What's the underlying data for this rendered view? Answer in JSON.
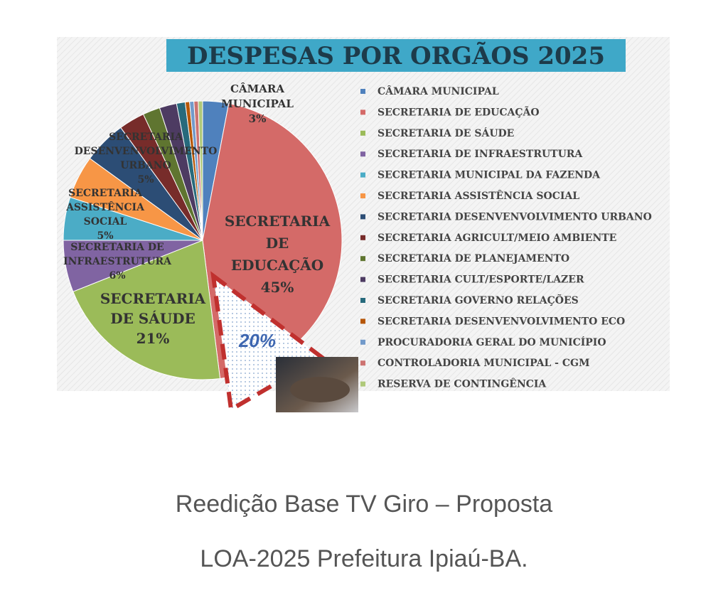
{
  "chart_data": {
    "type": "pie",
    "title": "DESPESAS POR ORGÃOS 2025",
    "categories": [
      "CÂMARA MUNICIPAL",
      "SECRETARIA DE EDUCAÇÃO",
      "SECRETARIA DE SÁUDE",
      "SECRETARIA DE INFRAESTRUTURA",
      "SECRETARIA MUNICIPAL DA FAZENDA",
      "SECRETARIA ASSISTÊNCIA SOCIAL",
      "SECRETARIA DESENVENVOLVIMENTO URBANO",
      "SECRETARIA AGRICULT/MEIO AMBIENTE",
      "SECRETARIA DE PLANEJAMENTO",
      "SECRETARIA CULT/ESPORTE/LAZER",
      "SECRETARIA GOVERNO RELAÇÕES",
      "SECRETARIA DESENVENVOLVIMENTO ECO",
      "PROCURADORIA GERAL DO MUNICÍPIO",
      "CONTROLADORIA MUNICIPAL - CGM",
      "RESERVA DE CONTINGÊNCIA"
    ],
    "values": [
      3,
      45,
      21,
      6,
      5,
      5,
      5,
      3,
      2,
      2,
      1,
      0.5,
      0.5,
      0.5,
      0.5
    ],
    "value_labels": [
      "3%",
      "45%",
      "21%",
      "6%",
      null,
      "5%",
      "5%",
      null,
      null,
      null,
      null,
      null,
      null,
      null,
      null
    ],
    "slice_labels": [
      [
        "CÂMARA",
        "MUNICIPAL"
      ],
      [
        "SECRETARIA",
        "DE",
        "EDUCAÇÃO"
      ],
      [
        "SECRETARIA",
        "DE SÁUDE"
      ],
      [
        "SECRETARIA DE",
        "INFRAESTRUTURA"
      ],
      null,
      [
        "SECRETARIA",
        "ASSISTÊNCIA",
        "SOCIAL"
      ],
      [
        "SECRETARIA",
        "DESENVENVOLVIMENTO",
        "URBANO"
      ],
      null,
      null,
      null,
      null,
      null,
      null,
      null,
      null
    ],
    "colors": [
      "#4f81bd",
      "#d46a68",
      "#9bbb59",
      "#8064a2",
      "#4bacc6",
      "#f79646",
      "#2c4d75",
      "#772c2a",
      "#5f7530",
      "#4d3b62",
      "#276a7c",
      "#b65708",
      "#729aca",
      "#cd7371",
      "#afc97a"
    ],
    "annotation": "20%",
    "legend": "right"
  },
  "caption": [
    "Reedição Base TV Giro – Proposta",
    "LOA-2025 Prefeitura Ipiaú-BA."
  ]
}
